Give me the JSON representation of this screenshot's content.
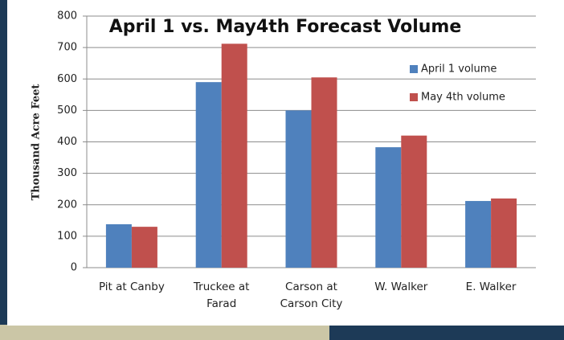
{
  "chart_data": {
    "type": "bar",
    "title": "April 1 vs. May4th Forecast Volume",
    "y_label": "Thousand Acre Feet",
    "categories": [
      "Pit at Canby",
      "Truckee at\nFarad",
      "Carson at\nCarson City",
      "W. Walker",
      "E. Walker"
    ],
    "series": [
      {
        "name": "April 1 volume",
        "color": "#4f81bd",
        "values": [
          138,
          590,
          500,
          383,
          212
        ]
      },
      {
        "name": "May 4th volume",
        "color": "#c0504d",
        "values": [
          130,
          712,
          605,
          420,
          220
        ]
      }
    ],
    "ylim": [
      0,
      800
    ],
    "yticks": [
      0,
      100,
      200,
      300,
      400,
      500,
      600,
      700,
      800
    ],
    "grid": true,
    "legend": "upper right"
  }
}
